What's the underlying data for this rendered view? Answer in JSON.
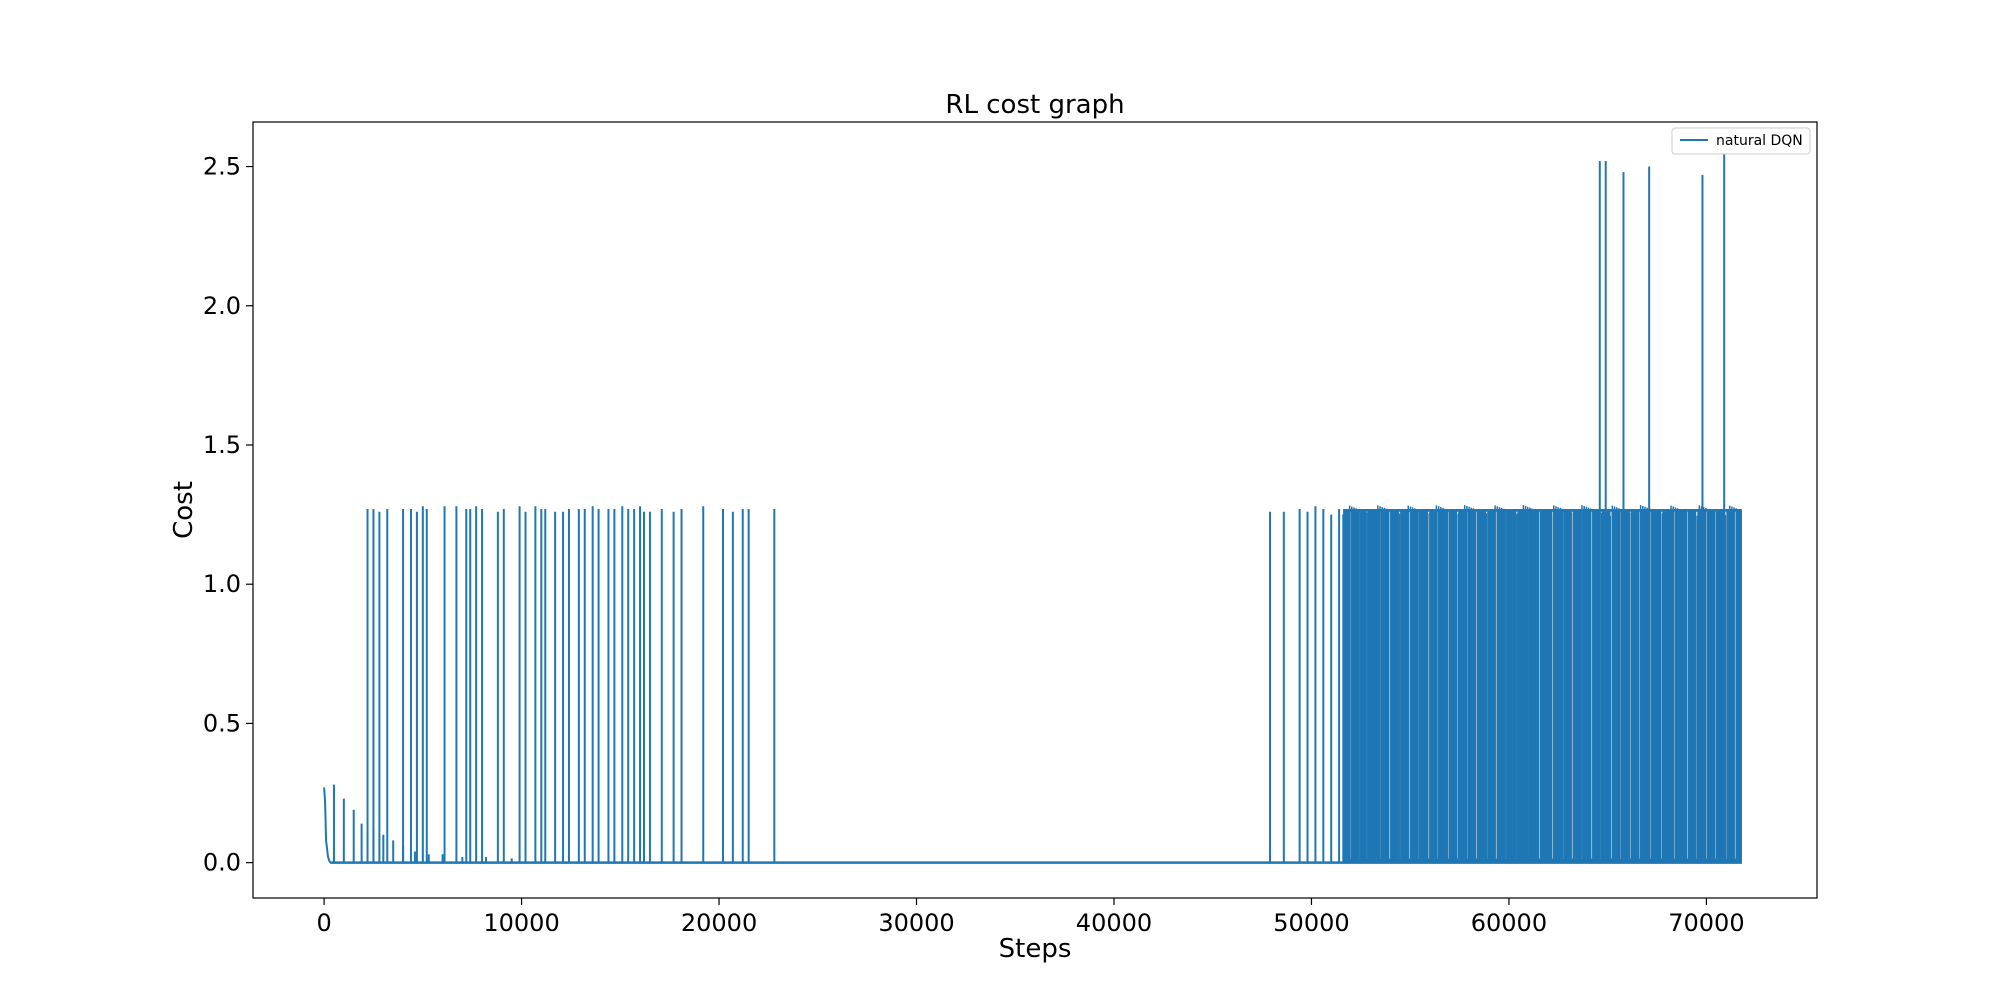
{
  "chart_data": {
    "type": "line",
    "title": "RL cost graph",
    "xlabel": "Steps",
    "ylabel": "Cost",
    "xlim": [
      -3600,
      75600
    ],
    "ylim": [
      -0.127,
      2.66
    ],
    "x_ticks": [
      0,
      10000,
      20000,
      30000,
      40000,
      50000,
      60000,
      70000
    ],
    "y_ticks": [
      0.0,
      0.5,
      1.0,
      1.5,
      2.0,
      2.5
    ],
    "x_tick_labels": [
      "0",
      "10000",
      "20000",
      "30000",
      "40000",
      "50000",
      "60000",
      "70000"
    ],
    "y_tick_labels": [
      "0.0",
      "0.5",
      "1.0",
      "1.5",
      "2.0",
      "2.5"
    ],
    "grid": false,
    "legend": {
      "position": "top-right"
    },
    "series_color": "#1f77b4",
    "series": [
      {
        "name": "natural DQN",
        "baseline": 0.0,
        "x_max": 71800,
        "early_decay": {
          "x": [
            0,
            50,
            100,
            200,
            300
          ],
          "y": [
            0.27,
            0.22,
            0.08,
            0.02,
            0.0
          ]
        },
        "spikes_small": [
          [
            500,
            0.28
          ],
          [
            1000,
            0.23
          ],
          [
            1500,
            0.19
          ],
          [
            1900,
            0.14
          ],
          [
            2500,
            0.12
          ],
          [
            3000,
            0.1
          ],
          [
            3500,
            0.08
          ],
          [
            4000,
            0.06
          ],
          [
            4600,
            0.04
          ],
          [
            5300,
            0.03
          ],
          [
            6000,
            0.03
          ],
          [
            7000,
            0.02
          ],
          [
            8200,
            0.02
          ],
          [
            9500,
            0.015
          ]
        ],
        "spikes_early": [
          [
            2200,
            1.27
          ],
          [
            2500,
            1.27
          ],
          [
            2800,
            1.26
          ],
          [
            3200,
            1.27
          ],
          [
            4000,
            1.27
          ],
          [
            4400,
            1.27
          ],
          [
            4700,
            1.26
          ],
          [
            5000,
            1.28
          ],
          [
            5200,
            1.27
          ],
          [
            6100,
            1.28
          ],
          [
            6700,
            1.28
          ],
          [
            7200,
            1.27
          ],
          [
            7400,
            1.27
          ],
          [
            7700,
            1.28
          ],
          [
            8000,
            1.27
          ],
          [
            8800,
            1.26
          ],
          [
            9100,
            1.27
          ],
          [
            9900,
            1.28
          ],
          [
            10200,
            1.26
          ],
          [
            10700,
            1.28
          ],
          [
            11000,
            1.27
          ],
          [
            11200,
            1.27
          ],
          [
            11700,
            1.26
          ],
          [
            12100,
            1.26
          ],
          [
            12400,
            1.27
          ],
          [
            12900,
            1.27
          ],
          [
            13200,
            1.27
          ],
          [
            13600,
            1.28
          ],
          [
            13900,
            1.27
          ],
          [
            14400,
            1.27
          ],
          [
            14700,
            1.27
          ],
          [
            15100,
            1.28
          ],
          [
            15400,
            1.27
          ],
          [
            15700,
            1.27
          ],
          [
            16000,
            1.28
          ],
          [
            16200,
            1.26
          ],
          [
            16500,
            1.26
          ],
          [
            17100,
            1.27
          ],
          [
            17700,
            1.26
          ],
          [
            18100,
            1.27
          ],
          [
            19200,
            1.28
          ],
          [
            20200,
            1.27
          ],
          [
            20700,
            1.26
          ],
          [
            21200,
            1.27
          ],
          [
            21500,
            1.27
          ],
          [
            22800,
            1.27
          ]
        ],
        "spikes_late_sparse": [
          [
            47900,
            1.26
          ],
          [
            48600,
            1.26
          ],
          [
            49400,
            1.27
          ],
          [
            49800,
            1.26
          ],
          [
            50200,
            1.28
          ],
          [
            50600,
            1.27
          ],
          [
            51000,
            1.25
          ],
          [
            51400,
            1.27
          ]
        ],
        "dense_band": {
          "x_start": 51600,
          "x_end": 71800,
          "y_low": 0.0,
          "y_high": 1.27
        },
        "spikes_high": [
          [
            64600,
            2.52
          ],
          [
            64900,
            2.52
          ],
          [
            65800,
            2.48
          ],
          [
            67100,
            2.5
          ],
          [
            69800,
            2.47
          ],
          [
            70900,
            2.55
          ]
        ]
      }
    ]
  }
}
